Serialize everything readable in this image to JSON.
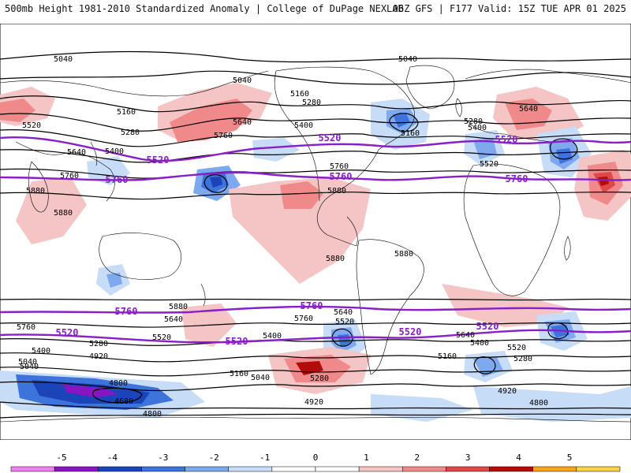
{
  "header": {
    "left": "500mb Height 1981-2010 Standardized Anomaly | College of DuPage NEXLAB",
    "right": "06Z GFS | F177 Valid: 15Z TUE APR 01 2025"
  },
  "colorbar": {
    "ticks": [
      "-5",
      "-4",
      "-3",
      "-2",
      "-1",
      "0",
      "1",
      "2",
      "3",
      "4",
      "5"
    ],
    "colors": [
      "#f07ff0",
      "#8a13c2",
      "#1a44b8",
      "#3c74dc",
      "#7ea9ee",
      "#c7dcf6",
      "#ffffff",
      "#ffffff",
      "#f5c4c4",
      "#f08a8a",
      "#e04848",
      "#b30a0a",
      "#f6a41c",
      "#f7d24a"
    ]
  },
  "map": {
    "height_contour_labels": [
      "5040",
      "5040",
      "5040",
      "5040",
      "5160",
      "5160",
      "5160",
      "5280",
      "5280",
      "5280",
      "5400",
      "5400",
      "5400",
      "5520",
      "5520",
      "5640",
      "5640",
      "5640",
      "5760",
      "5760",
      "5760",
      "5880",
      "5880",
      "5880",
      "5880",
      "5040",
      "5040",
      "4920",
      "4920",
      "4920",
      "4800",
      "4800",
      "4800",
      "4680",
      "5160",
      "5160",
      "5280",
      "5280",
      "5280",
      "5400",
      "5400",
      "5400",
      "5520",
      "5520",
      "5520",
      "5640",
      "5640",
      "5760",
      "5760",
      "5640",
      "5880",
      "5880"
    ],
    "highlight_labels": [
      "5520",
      "5520",
      "5520",
      "5520",
      "5760",
      "5760",
      "5760",
      "5760",
      "5520",
      "5520",
      "5520",
      "5760"
    ],
    "colors": {
      "highlight_contour": "#8a1ec8",
      "height_contour": "#000000",
      "coastline": "#000000"
    }
  }
}
